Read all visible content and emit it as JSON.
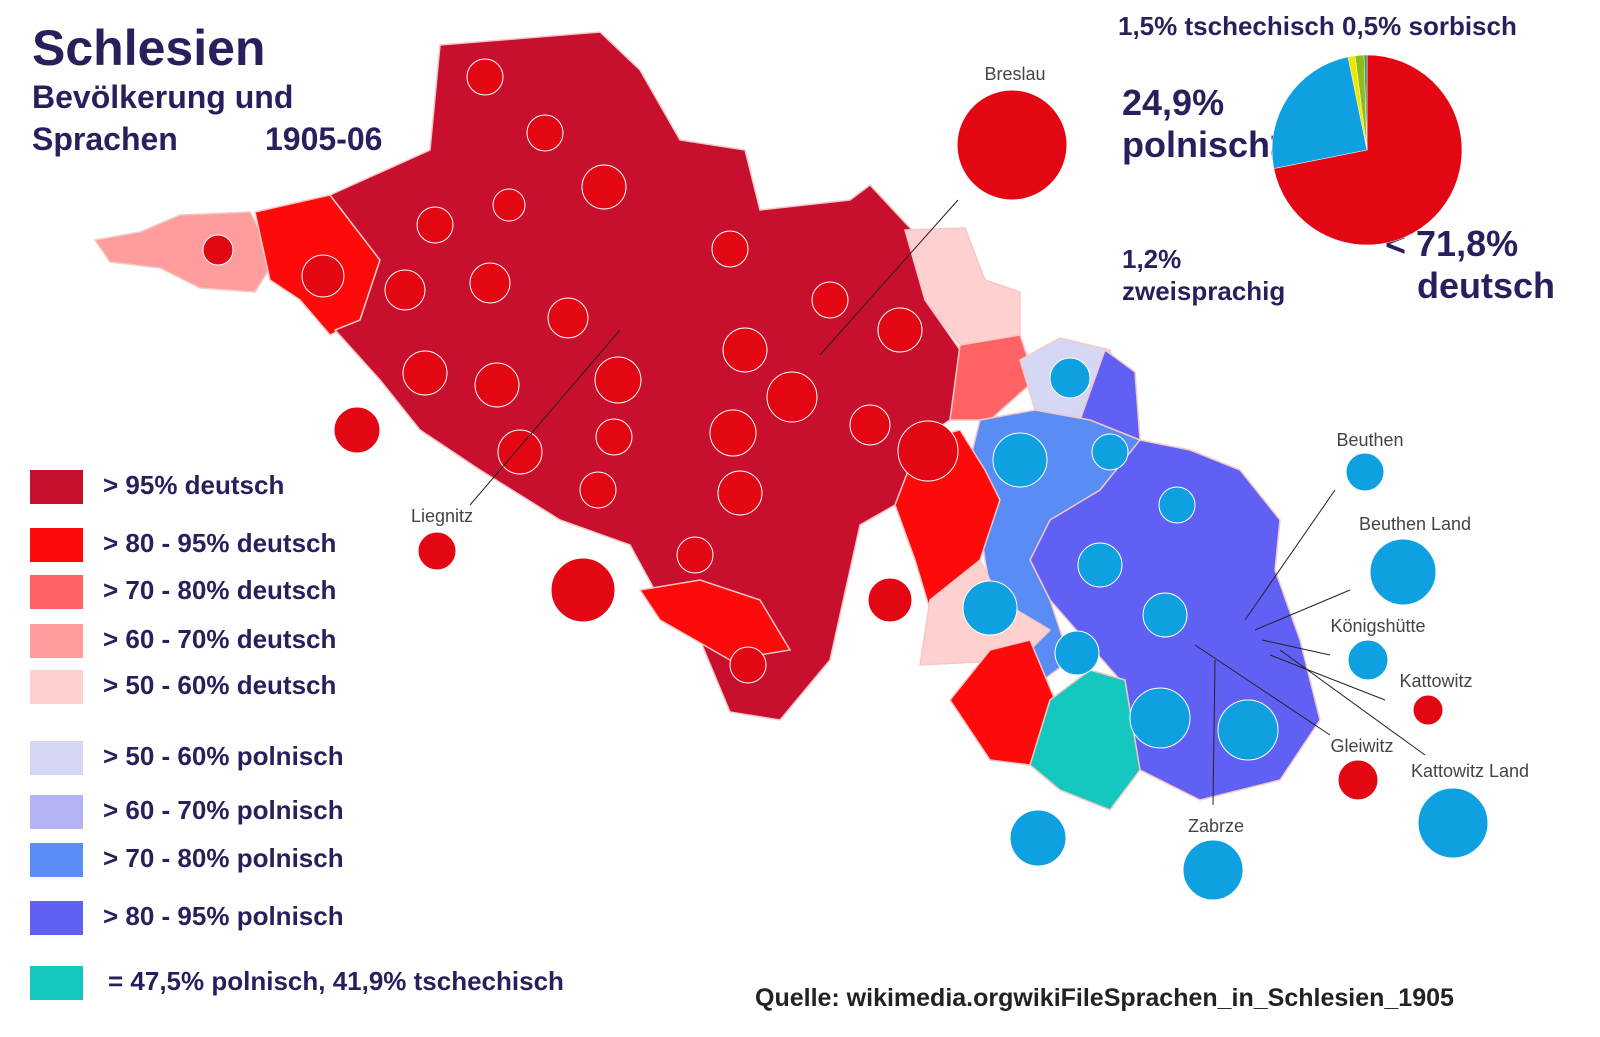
{
  "header": {
    "title": "Schlesien",
    "subtitle_line1": "Bevölkerung und",
    "subtitle_line2": "Sprachen",
    "period": "1905-06"
  },
  "summary_pie": {
    "top_label": "1,5% tschechisch 0,5% sorbisch",
    "slices": [
      {
        "name": "deutsch",
        "value": 71.8,
        "color": "#e30613"
      },
      {
        "name": "polnisch",
        "value": 24.9,
        "color": "#0ea0e0"
      },
      {
        "name": "zweisprachig",
        "value": 1.2,
        "color": "#f2e500"
      },
      {
        "name": "tschechisch",
        "value": 1.5,
        "color": "#8dbd1c"
      },
      {
        "name": "sorbisch",
        "value": 0.5,
        "color": "#2e9e4f"
      }
    ],
    "labels": {
      "polnisch_pct": "24,9%",
      "polnisch": "polnisch>",
      "zweisprachig_pct": "1,2%",
      "zweisprachig": "zweisprachig",
      "deutsch_pct": "< 71,8%",
      "deutsch": "deutsch"
    }
  },
  "legend": [
    {
      "label": "> 95% deutsch",
      "color": "#c8102e"
    },
    {
      "label": "> 80 - 95% deutsch",
      "color": "#ff0a0a"
    },
    {
      "label": "> 70 - 80% deutsch",
      "color": "#ff6363"
    },
    {
      "label": "> 60 - 70% deutsch",
      "color": "#ff9d9d"
    },
    {
      "label": "> 50 - 60% deutsch",
      "color": "#ffd0d0"
    },
    {
      "label": "> 50 - 60% polnisch",
      "color": "#d6d6f5"
    },
    {
      "label": "> 60 - 70% polnisch",
      "color": "#b4b4f5"
    },
    {
      "label": "> 70 - 80% polnisch",
      "color": "#5a8cf5"
    },
    {
      "label": "> 80 - 95% polnisch",
      "color": "#6060f5"
    },
    {
      "label": "= 47,5% polnisch, 41,9% tschechisch",
      "color": "#14c8c0"
    }
  ],
  "cities": [
    "Breslau",
    "Liegnitz",
    "Beuthen",
    "Beuthen Land",
    "Königshütte",
    "Kattowitz",
    "Gleiwitz",
    "Kattowitz Land",
    "Zabrze"
  ],
  "source": "Quelle: wikimedia.orgwikiFileSprachen_in_Schlesien_1905"
}
